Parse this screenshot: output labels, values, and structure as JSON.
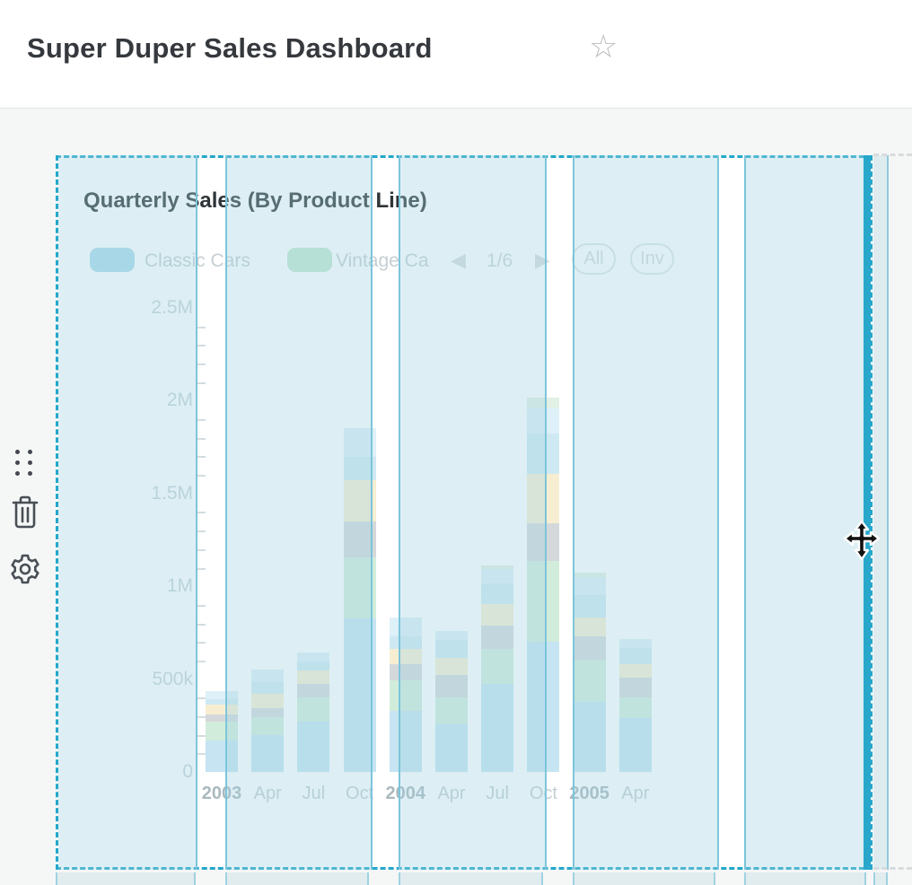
{
  "header": {
    "title": "Super Duper Sales Dashboard",
    "favorite_icon": "star-outline",
    "favorite_glyph": "☆"
  },
  "side_actions": {
    "drag_handle_icon": "grip-dots",
    "delete_icon": "trash",
    "settings_icon": "gear"
  },
  "card": {
    "title": "Quarterly Sales (By Product Line)",
    "state": "selected-being-dragged",
    "border_color": "#22a7cc",
    "legend": {
      "items": [
        {
          "label": "Classic Cars",
          "color": "#addbeb"
        },
        {
          "label": "Vintage Ca",
          "full_label_truncated": true,
          "color": "#c3e6cf"
        }
      ],
      "pagination": {
        "prev_icon": "left-arrow",
        "prev_glyph": "◀",
        "label": "1/6",
        "next_icon": "right-arrow",
        "next_glyph": "▶"
      },
      "buttons": [
        {
          "label": "All"
        },
        {
          "label": "Inv"
        }
      ]
    }
  },
  "cursor": {
    "type": "move-cursor-4-way"
  },
  "grid_overlay": {
    "column_fill": "rgba(160,212,225,0.36)",
    "gutter_line_color": "#7cc5da",
    "drag_edge_color": "#28a7cb"
  },
  "chart_data": {
    "type": "bar",
    "stacked": true,
    "title": "Quarterly Sales (By Product Line)",
    "categories": [
      "2003 Q1",
      "2003 Q2",
      "2003 Q3",
      "2003 Q4",
      "2004 Q1",
      "2004 Q2",
      "2004 Q3",
      "2004 Q4",
      "2005 Q1",
      "2005 Q2"
    ],
    "x_tick_labels": [
      "2003",
      "Apr",
      "Jul",
      "Oct",
      "2004",
      "Apr",
      "Jul",
      "Oct",
      "2005",
      "Apr"
    ],
    "x_tick_bold": [
      true,
      false,
      false,
      false,
      true,
      false,
      false,
      false,
      true,
      false
    ],
    "y_tick_labels": [
      "0",
      "500k",
      "1M",
      "1.5M",
      "2M",
      "2.5M"
    ],
    "ylim": [
      0,
      2500000
    ],
    "grid": true,
    "legend_position": "top",
    "values_note": "estimated from pixels",
    "series": [
      {
        "name": "Classic Cars",
        "color": "#c6e4f2",
        "values": [
          170000,
          198000,
          270000,
          827000,
          329000,
          256000,
          474000,
          701000,
          377000,
          290000
        ]
      },
      {
        "name": "Vintage Cars",
        "color": "#d2ecdb",
        "values": [
          100000,
          97000,
          130000,
          329000,
          164000,
          145000,
          189000,
          435000,
          227000,
          111000
        ]
      },
      {
        "name": "unlabeled-gray",
        "color": "#d5d8db",
        "values": [
          39000,
          48000,
          73000,
          193000,
          87000,
          121000,
          126000,
          203000,
          126000,
          106000
        ]
      },
      {
        "name": "unlabeled-cream",
        "color": "#f7eed2",
        "values": [
          53000,
          77000,
          73000,
          222000,
          82000,
          92000,
          116000,
          266000,
          102000,
          73000
        ]
      },
      {
        "name": "unlabeled-cyan",
        "color": "#cfe9f3",
        "values": [
          29000,
          64000,
          48000,
          126000,
          68000,
          97000,
          111000,
          218000,
          121000,
          87000
        ]
      },
      {
        "name": "unlabeled-paleblue",
        "color": "#def0f8",
        "values": [
          44000,
          68000,
          48000,
          155000,
          102000,
          48000,
          77000,
          135000,
          97000,
          48000
        ]
      },
      {
        "name": "unlabeled-palegreen",
        "color": "#e2f0e5",
        "values": [
          0,
          0,
          0,
          0,
          0,
          0,
          20000,
          58000,
          24000,
          0
        ]
      }
    ]
  }
}
